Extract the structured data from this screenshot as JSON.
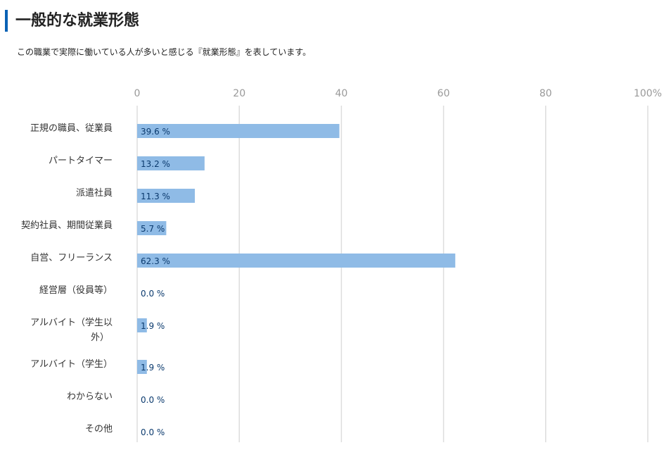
{
  "header": {
    "title": "一般的な就業形態",
    "description": "この職業で実際に働いている人が多いと感じる『就業形態』を表しています。"
  },
  "colors": {
    "accent": "#0a62b5",
    "bar": "#8fbbe6",
    "value_label": "#0b3a6e",
    "tick_label": "#999999",
    "grid": "#dddddd",
    "category_label": "#333333"
  },
  "chart_data": {
    "type": "bar",
    "orientation": "horizontal",
    "categories": [
      "正規の職員、従業員",
      "パートタイマー",
      "派遣社員",
      "契約社員、期間従業員",
      "自営、フリーランス",
      "経営層（役員等）",
      "アルバイト（学生以外）",
      "アルバイト（学生）",
      "わからない",
      "その他"
    ],
    "values": [
      39.6,
      13.2,
      11.3,
      5.7,
      62.3,
      0.0,
      1.9,
      1.9,
      0.0,
      0.0
    ],
    "value_labels": [
      "39.6 %",
      "13.2 %",
      "11.3 %",
      "5.7 %",
      "62.3 %",
      "0.0 %",
      "1.9 %",
      "1.9 %",
      "0.0 %",
      "0.0 %"
    ],
    "x_ticks": [
      "0",
      "20",
      "40",
      "60",
      "80",
      "100%"
    ],
    "xlim": [
      0,
      100
    ],
    "grid": true,
    "legend": "none"
  }
}
